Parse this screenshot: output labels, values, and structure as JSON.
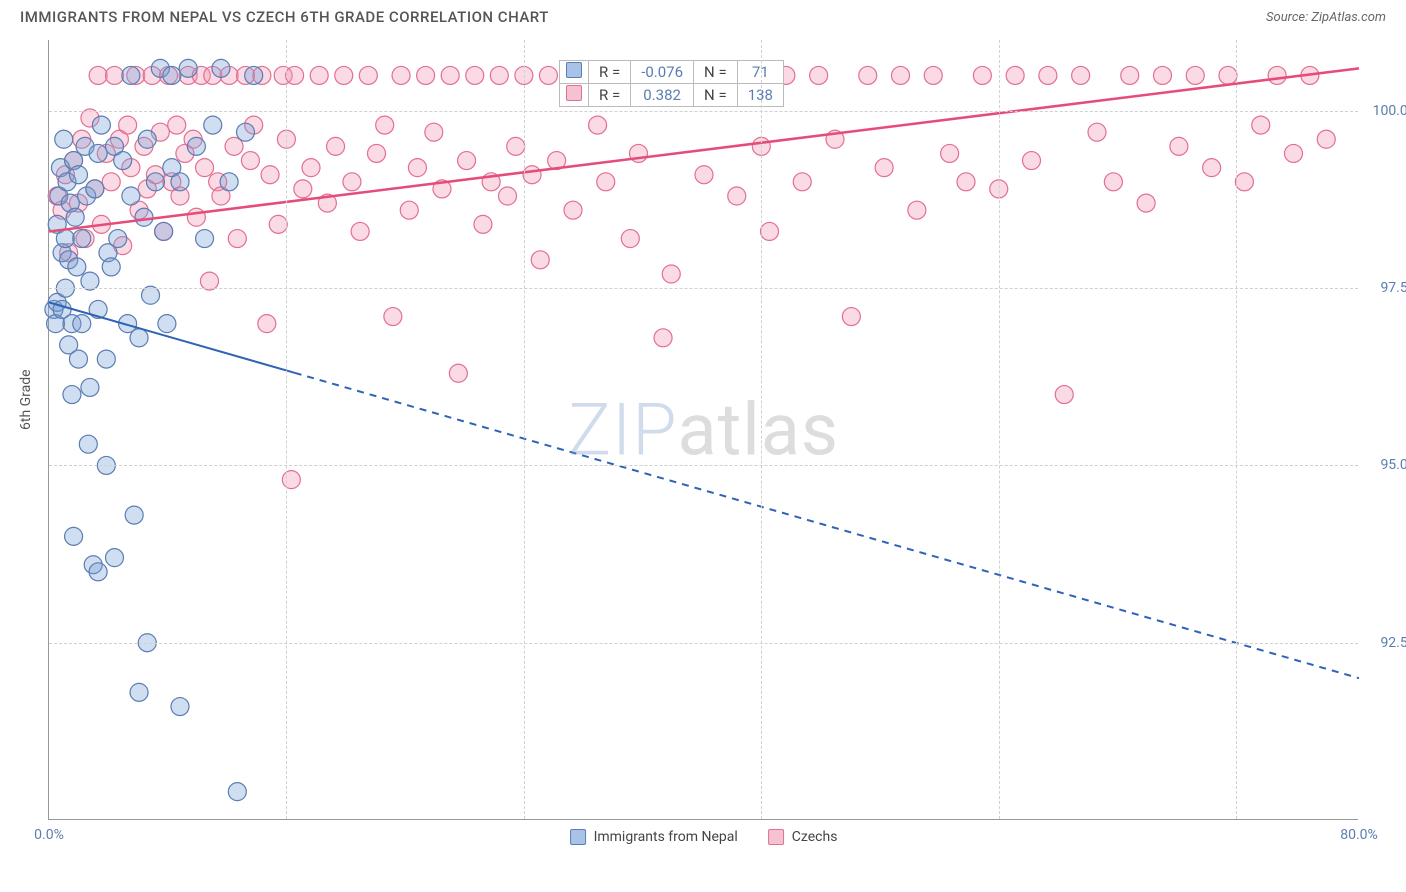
{
  "header": {
    "title": "IMMIGRANTS FROM NEPAL VS CZECH 6TH GRADE CORRELATION CHART",
    "source": "Source: ZipAtlas.com"
  },
  "axes": {
    "y_title": "6th Grade",
    "xlim": [
      0,
      80
    ],
    "ylim": [
      90,
      101
    ],
    "x_ticks": [
      0,
      80
    ],
    "x_tick_labels": [
      "0.0%",
      "80.0%"
    ],
    "x_minor_ticks": [
      14.5,
      29,
      43.5,
      58,
      72.5
    ],
    "y_ticks": [
      92.5,
      95.0,
      97.5,
      100.0
    ],
    "y_tick_labels": [
      "92.5%",
      "95.0%",
      "97.5%",
      "100.0%"
    ],
    "grid_color": "#d0d0d0"
  },
  "watermark": {
    "text_a": "ZIP",
    "text_b": "atlas"
  },
  "legend_top": {
    "rows": [
      {
        "swatch_fill": "#a9c3e8",
        "swatch_stroke": "#5b7db1",
        "R": "-0.076",
        "N": "71"
      },
      {
        "swatch_fill": "#f4c2d0",
        "swatch_stroke": "#e36f91",
        "R": "0.382",
        "N": "138"
      }
    ],
    "R_label": "R =",
    "N_label": "N ="
  },
  "legend_bottom": {
    "items": [
      {
        "label": "Immigrants from Nepal",
        "fill": "#a9c3e8",
        "stroke": "#5b7db1"
      },
      {
        "label": "Czechs",
        "fill": "#f4c2d0",
        "stroke": "#e36f91"
      }
    ]
  },
  "series": {
    "nepal": {
      "color_fill": "rgba(120,160,215,0.35)",
      "color_stroke": "#5b7db1",
      "marker_r": 9,
      "trend": {
        "x1": 0,
        "y1": 97.3,
        "x2": 80,
        "y2": 92.0,
        "solid_until_x": 15,
        "stroke": "#2f63b3",
        "width": 2
      },
      "points": [
        [
          0.3,
          97.2
        ],
        [
          0.4,
          97.0
        ],
        [
          0.5,
          98.4
        ],
        [
          0.5,
          97.3
        ],
        [
          0.6,
          98.8
        ],
        [
          0.7,
          99.2
        ],
        [
          0.8,
          97.2
        ],
        [
          0.8,
          98.0
        ],
        [
          0.9,
          99.6
        ],
        [
          1.0,
          98.2
        ],
        [
          1.0,
          97.5
        ],
        [
          1.1,
          99.0
        ],
        [
          1.2,
          96.7
        ],
        [
          1.2,
          97.9
        ],
        [
          1.3,
          98.7
        ],
        [
          1.4,
          96.0
        ],
        [
          1.4,
          97.0
        ],
        [
          1.5,
          99.3
        ],
        [
          1.5,
          94.0
        ],
        [
          1.6,
          98.5
        ],
        [
          1.7,
          97.8
        ],
        [
          1.8,
          99.1
        ],
        [
          1.8,
          96.5
        ],
        [
          2.0,
          98.2
        ],
        [
          2.0,
          97.0
        ],
        [
          2.2,
          99.5
        ],
        [
          2.3,
          98.8
        ],
        [
          2.4,
          95.3
        ],
        [
          2.5,
          97.6
        ],
        [
          2.5,
          96.1
        ],
        [
          2.7,
          93.6
        ],
        [
          2.8,
          98.9
        ],
        [
          3.0,
          99.4
        ],
        [
          3.0,
          97.2
        ],
        [
          3.0,
          93.5
        ],
        [
          3.2,
          99.8
        ],
        [
          3.5,
          96.5
        ],
        [
          3.5,
          95.0
        ],
        [
          3.6,
          98.0
        ],
        [
          3.8,
          97.8
        ],
        [
          4.0,
          99.5
        ],
        [
          4.0,
          93.7
        ],
        [
          4.2,
          98.2
        ],
        [
          4.5,
          99.3
        ],
        [
          4.8,
          97.0
        ],
        [
          5.0,
          100.5
        ],
        [
          5.0,
          98.8
        ],
        [
          5.2,
          94.3
        ],
        [
          5.5,
          96.8
        ],
        [
          5.5,
          91.8
        ],
        [
          5.8,
          98.5
        ],
        [
          6.0,
          99.6
        ],
        [
          6.0,
          92.5
        ],
        [
          6.2,
          97.4
        ],
        [
          6.5,
          99.0
        ],
        [
          6.8,
          100.6
        ],
        [
          7.0,
          98.3
        ],
        [
          7.2,
          97.0
        ],
        [
          7.5,
          100.5
        ],
        [
          7.5,
          99.2
        ],
        [
          8.0,
          99.0
        ],
        [
          8.0,
          91.6
        ],
        [
          8.5,
          100.6
        ],
        [
          9.0,
          99.5
        ],
        [
          9.5,
          98.2
        ],
        [
          10.0,
          99.8
        ],
        [
          10.5,
          100.6
        ],
        [
          11.0,
          99.0
        ],
        [
          11.5,
          90.4
        ],
        [
          12.0,
          99.7
        ],
        [
          12.5,
          100.5
        ]
      ]
    },
    "czech": {
      "color_fill": "rgba(240,150,180,0.35)",
      "color_stroke": "#e36f91",
      "marker_r": 9,
      "trend": {
        "x1": 0,
        "y1": 98.3,
        "x2": 80,
        "y2": 100.6,
        "solid_until_x": 80,
        "stroke": "#e64c7a",
        "width": 2.5
      },
      "points": [
        [
          0.5,
          98.8
        ],
        [
          0.8,
          98.6
        ],
        [
          1.0,
          99.1
        ],
        [
          1.2,
          98.0
        ],
        [
          1.5,
          99.3
        ],
        [
          1.8,
          98.7
        ],
        [
          2.0,
          99.6
        ],
        [
          2.2,
          98.2
        ],
        [
          2.5,
          99.9
        ],
        [
          2.8,
          98.9
        ],
        [
          3.0,
          100.5
        ],
        [
          3.2,
          98.4
        ],
        [
          3.5,
          99.4
        ],
        [
          3.8,
          99.0
        ],
        [
          4.0,
          100.5
        ],
        [
          4.3,
          99.6
        ],
        [
          4.5,
          98.1
        ],
        [
          4.8,
          99.8
        ],
        [
          5.0,
          99.2
        ],
        [
          5.3,
          100.5
        ],
        [
          5.5,
          98.6
        ],
        [
          5.8,
          99.5
        ],
        [
          6.0,
          98.9
        ],
        [
          6.3,
          100.5
        ],
        [
          6.5,
          99.1
        ],
        [
          6.8,
          99.7
        ],
        [
          7.0,
          98.3
        ],
        [
          7.3,
          100.5
        ],
        [
          7.5,
          99.0
        ],
        [
          7.8,
          99.8
        ],
        [
          8.0,
          98.8
        ],
        [
          8.3,
          99.4
        ],
        [
          8.5,
          100.5
        ],
        [
          8.8,
          99.6
        ],
        [
          9.0,
          98.5
        ],
        [
          9.3,
          100.5
        ],
        [
          9.5,
          99.2
        ],
        [
          9.8,
          97.6
        ],
        [
          10.0,
          100.5
        ],
        [
          10.3,
          99.0
        ],
        [
          10.5,
          98.8
        ],
        [
          11.0,
          100.5
        ],
        [
          11.3,
          99.5
        ],
        [
          11.5,
          98.2
        ],
        [
          12.0,
          100.5
        ],
        [
          12.3,
          99.3
        ],
        [
          12.5,
          99.8
        ],
        [
          13.0,
          100.5
        ],
        [
          13.3,
          97.0
        ],
        [
          13.5,
          99.1
        ],
        [
          14.0,
          98.4
        ],
        [
          14.3,
          100.5
        ],
        [
          14.5,
          99.6
        ],
        [
          14.8,
          94.8
        ],
        [
          15.0,
          100.5
        ],
        [
          15.5,
          98.9
        ],
        [
          16.0,
          99.2
        ],
        [
          16.5,
          100.5
        ],
        [
          17.0,
          98.7
        ],
        [
          17.5,
          99.5
        ],
        [
          18.0,
          100.5
        ],
        [
          18.5,
          99.0
        ],
        [
          19.0,
          98.3
        ],
        [
          19.5,
          100.5
        ],
        [
          20.0,
          99.4
        ],
        [
          20.5,
          99.8
        ],
        [
          21.0,
          97.1
        ],
        [
          21.5,
          100.5
        ],
        [
          22.0,
          98.6
        ],
        [
          22.5,
          99.2
        ],
        [
          23.0,
          100.5
        ],
        [
          23.5,
          99.7
        ],
        [
          24.0,
          98.9
        ],
        [
          24.5,
          100.5
        ],
        [
          25.0,
          96.3
        ],
        [
          25.5,
          99.3
        ],
        [
          26.0,
          100.5
        ],
        [
          26.5,
          98.4
        ],
        [
          27.0,
          99.0
        ],
        [
          27.5,
          100.5
        ],
        [
          28.0,
          98.8
        ],
        [
          28.5,
          99.5
        ],
        [
          29.0,
          100.5
        ],
        [
          29.5,
          99.1
        ],
        [
          30.0,
          97.9
        ],
        [
          30.5,
          100.5
        ],
        [
          31.0,
          99.3
        ],
        [
          32.0,
          98.6
        ],
        [
          33.0,
          100.5
        ],
        [
          33.5,
          99.8
        ],
        [
          34.0,
          99.0
        ],
        [
          35.0,
          100.5
        ],
        [
          35.5,
          98.2
        ],
        [
          36.0,
          99.4
        ],
        [
          37.0,
          100.5
        ],
        [
          37.5,
          96.8
        ],
        [
          38.0,
          97.7
        ],
        [
          39.0,
          100.5
        ],
        [
          40.0,
          99.1
        ],
        [
          41.0,
          100.5
        ],
        [
          42.0,
          98.8
        ],
        [
          43.0,
          100.5
        ],
        [
          43.5,
          99.5
        ],
        [
          44.0,
          98.3
        ],
        [
          45.0,
          100.5
        ],
        [
          46.0,
          99.0
        ],
        [
          47.0,
          100.5
        ],
        [
          48.0,
          99.6
        ],
        [
          49.0,
          97.1
        ],
        [
          50.0,
          100.5
        ],
        [
          51.0,
          99.2
        ],
        [
          52.0,
          100.5
        ],
        [
          53.0,
          98.6
        ],
        [
          54.0,
          100.5
        ],
        [
          55.0,
          99.4
        ],
        [
          56.0,
          99.0
        ],
        [
          57.0,
          100.5
        ],
        [
          58.0,
          98.9
        ],
        [
          59.0,
          100.5
        ],
        [
          60.0,
          99.3
        ],
        [
          61.0,
          100.5
        ],
        [
          62.0,
          96.0
        ],
        [
          63.0,
          100.5
        ],
        [
          64.0,
          99.7
        ],
        [
          65.0,
          99.0
        ],
        [
          66.0,
          100.5
        ],
        [
          67.0,
          98.7
        ],
        [
          68.0,
          100.5
        ],
        [
          69.0,
          99.5
        ],
        [
          70.0,
          100.5
        ],
        [
          71.0,
          99.2
        ],
        [
          72.0,
          100.5
        ],
        [
          73.0,
          99.0
        ],
        [
          74.0,
          99.8
        ],
        [
          75.0,
          100.5
        ],
        [
          76.0,
          99.4
        ],
        [
          77.0,
          100.5
        ],
        [
          78.0,
          99.6
        ]
      ]
    }
  }
}
